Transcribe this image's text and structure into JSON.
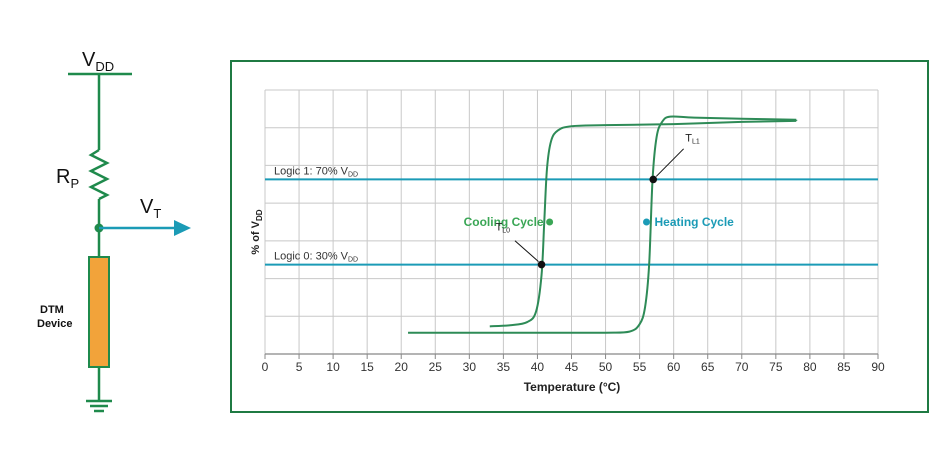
{
  "colors": {
    "circuit_green": "#1f8a4c",
    "hysteresis_green": "#2e8b57",
    "teal": "#1b9bb6",
    "resistor_body": "#f2a33a",
    "frame_green": "#1f7a43",
    "grid": "#c8c8c8",
    "label_green": "#3aa655",
    "label_teal": "#1b9bb6"
  },
  "circuit": {
    "vdd_main": "V",
    "vdd_sub": "DD",
    "rp_main": "R",
    "rp_sub": "P",
    "vt_main": "V",
    "vt_sub": "T",
    "device_line1": "DTM",
    "device_line2": "Device",
    "icons": [
      "resistor-icon",
      "ground-icon",
      "arrow-right-icon",
      "node-dot-icon"
    ]
  },
  "chart_data": {
    "type": "line",
    "xlabel": "Temperature (°C)",
    "ylabel_main": "% of V",
    "ylabel_sub": "DD",
    "xlim": [
      0,
      90
    ],
    "ylim": [
      -12,
      112
    ],
    "x_ticks": [
      0,
      5,
      10,
      15,
      20,
      25,
      30,
      35,
      40,
      45,
      50,
      55,
      60,
      65,
      70,
      75,
      80,
      85,
      90
    ],
    "grid": true,
    "thresholds": [
      {
        "label_main": "Logic 1: 70% V",
        "label_sub": "DD",
        "y": 70
      },
      {
        "label_main": "Logic 0: 30% V",
        "label_sub": "DD",
        "y": 30
      }
    ],
    "series": [
      {
        "name": "Cooling Cycle",
        "points": [
          [
            33,
            1
          ],
          [
            36,
            1.5
          ],
          [
            38.5,
            3
          ],
          [
            39.8,
            8
          ],
          [
            40.6,
            25
          ],
          [
            41,
            50
          ],
          [
            41.4,
            75
          ],
          [
            42,
            88
          ],
          [
            43,
            93
          ],
          [
            45,
            95
          ],
          [
            50,
            95.5
          ],
          [
            60,
            96
          ],
          [
            70,
            97
          ],
          [
            78,
            97.5
          ]
        ]
      },
      {
        "name": "Heating Cycle",
        "points": [
          [
            21,
            -2
          ],
          [
            40,
            -2
          ],
          [
            50,
            -2
          ],
          [
            53.5,
            -1.5
          ],
          [
            55,
            2
          ],
          [
            55.8,
            10
          ],
          [
            56.4,
            30
          ],
          [
            56.9,
            70
          ],
          [
            57.5,
            90
          ],
          [
            58.3,
            97
          ],
          [
            59.5,
            99.5
          ],
          [
            63,
            99
          ],
          [
            70,
            98.5
          ],
          [
            78,
            98
          ]
        ]
      }
    ],
    "markers": [
      {
        "name": "Cooling Cycle",
        "x": 41.2,
        "y": 50,
        "side": "left"
      },
      {
        "name": "Heating Cycle",
        "x": 56.6,
        "y": 50,
        "side": "right"
      }
    ],
    "crossings": [
      {
        "label_main": "T",
        "label_sub": "L1",
        "x": 57,
        "y": 70
      },
      {
        "label_main": "T",
        "label_sub": "L0",
        "x": 40.6,
        "y": 30
      }
    ]
  }
}
